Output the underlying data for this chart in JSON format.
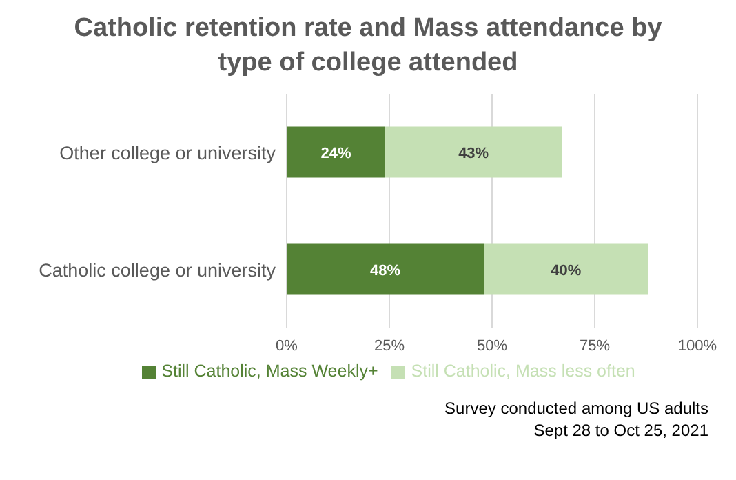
{
  "chart_data": {
    "type": "bar",
    "orientation": "horizontal",
    "stacked": true,
    "title": "Catholic retention rate and Mass attendance by type of college attended",
    "categories": [
      "Other college or university",
      "Catholic college or university"
    ],
    "series": [
      {
        "name": "Still Catholic, Mass Weekly+",
        "color": "#548235",
        "values": [
          24,
          48
        ],
        "value_labels": [
          "24%",
          "48%"
        ]
      },
      {
        "name": "Still Catholic, Mass less often",
        "color": "#c5e0b4",
        "values": [
          43,
          40
        ],
        "value_labels": [
          "43%",
          "40%"
        ]
      }
    ],
    "xlim": [
      0,
      100
    ],
    "xticks": [
      {
        "value": 0,
        "label": "0%"
      },
      {
        "value": 25,
        "label": "25%"
      },
      {
        "value": 50,
        "label": "50%"
      },
      {
        "value": 75,
        "label": "75%"
      },
      {
        "value": 100,
        "label": "100%"
      }
    ],
    "grid": "x",
    "legend": "bottom",
    "annotations": [
      "Survey conducted among US adults",
      "Sept 28 to Oct 25, 2021"
    ]
  }
}
